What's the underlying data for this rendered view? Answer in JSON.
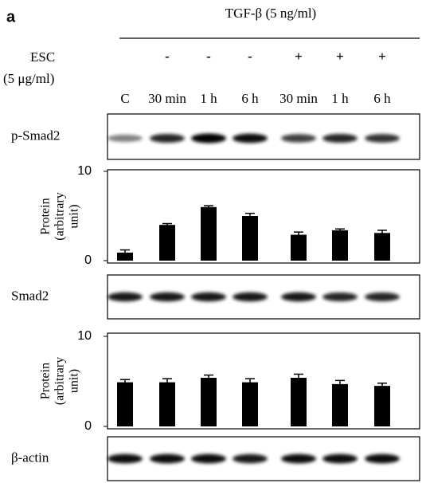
{
  "header": {
    "panel_label": "a",
    "treatment": "TGF-β (5 ng/ml)",
    "esc_label": "ESC",
    "esc_dose": "(5 μg/ml)",
    "esc_signs": [
      null,
      "-",
      "-",
      "-",
      "+",
      "+",
      "+"
    ],
    "columns": [
      "C",
      "30 min",
      "1 h",
      "6 h",
      "30 min",
      "1 h",
      "6 h"
    ]
  },
  "blots": [
    {
      "label": "p-Smad2"
    },
    {
      "label": "Smad2"
    },
    {
      "label": "β-actin"
    }
  ],
  "chart_data": [
    {
      "type": "bar",
      "ylabel_lines": [
        "Protein",
        "(arbitrary",
        "unit)"
      ],
      "values": [
        0.9,
        4.0,
        6.0,
        5.0,
        2.9,
        3.4,
        3.1
      ],
      "errors": [
        0.3,
        0.15,
        0.15,
        0.3,
        0.3,
        0.15,
        0.3
      ],
      "color": "#000000",
      "ylim": [
        0,
        10
      ],
      "yticks": [
        0,
        10
      ]
    },
    {
      "type": "bar",
      "ylabel_lines": [
        "Protein",
        "(arbitrary",
        "unit)"
      ],
      "values": [
        4.9,
        4.9,
        5.4,
        4.9,
        5.4,
        4.7,
        4.5
      ],
      "errors": [
        0.3,
        0.4,
        0.3,
        0.4,
        0.4,
        0.4,
        0.3
      ],
      "color": "#000000",
      "ylim": [
        0,
        10
      ],
      "yticks": [
        0,
        10
      ]
    }
  ]
}
